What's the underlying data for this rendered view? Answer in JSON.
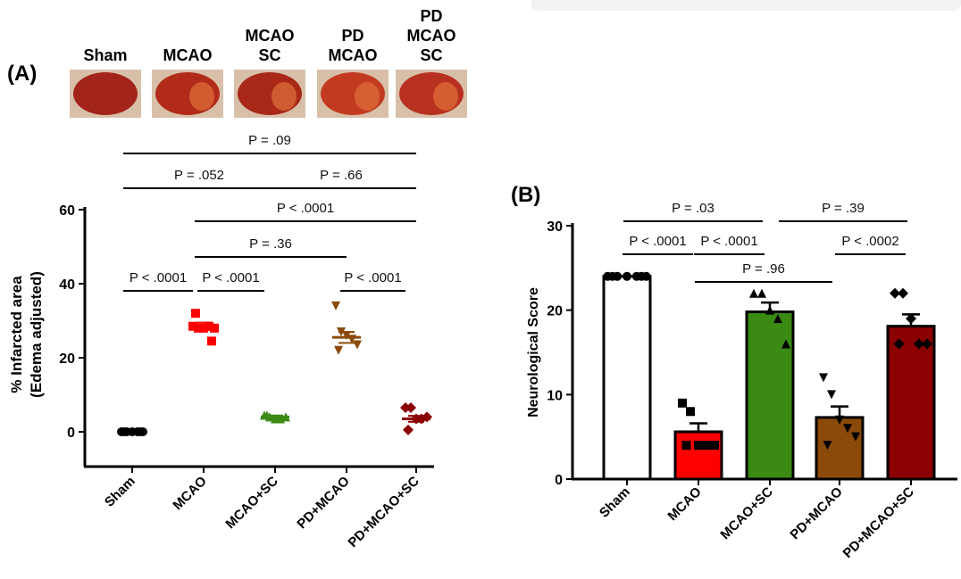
{
  "top_bar_color": "#f2f2f2",
  "chart_data": [
    {
      "panel": "(A)",
      "type": "scatter",
      "ylabel": [
        "% Infarcted area",
        "(Edema adjusted)"
      ],
      "ylim": [
        0,
        60
      ],
      "yticks": [
        "0",
        "20",
        "40",
        "60"
      ],
      "categories": [
        "Sham",
        "MCAO",
        "MCAO+SC",
        "PD+MCAO",
        "PD+MCAO+SC"
      ],
      "image_labels": [
        "Sham",
        "MCAO",
        "MCAO SC",
        "PD MCAO",
        "PD MCAO SC"
      ],
      "series": [
        {
          "name": "Sham",
          "color": "#000000",
          "marker": "circle",
          "mean": 0,
          "sem": 0,
          "points": [
            0,
            0,
            0,
            0,
            0,
            0,
            0
          ]
        },
        {
          "name": "MCAO",
          "color": "#ff0000",
          "marker": "square",
          "mean": 28.5,
          "sem": 1,
          "points": [
            28.5,
            28,
            28,
            28.5,
            28,
            32,
            24.5
          ]
        },
        {
          "name": "MCAO+SC",
          "color": "#3a8a14",
          "marker": "triangle-up",
          "mean": 4,
          "sem": 0.4,
          "points": [
            4.5,
            4,
            3.5,
            3.5,
            4,
            4.5
          ]
        },
        {
          "name": "PD+MCAO",
          "color": "#8b4a0a",
          "marker": "triangle-down",
          "mean": 25.5,
          "sem": 1.5,
          "points": [
            34,
            27,
            26,
            25,
            23.5,
            22
          ]
        },
        {
          "name": "PD+MCAO+SC",
          "color": "#8b0000",
          "marker": "diamond",
          "mean": 3.5,
          "sem": 0.8,
          "points": [
            6.5,
            6.5,
            3.5,
            3.5,
            4,
            0.5
          ]
        }
      ],
      "comparisons": [
        {
          "label": "P = .09",
          "from": 0,
          "to": 4,
          "level": 5
        },
        {
          "label": "P = .052",
          "from": 0,
          "to": 2,
          "level": 4
        },
        {
          "label": "P = .66",
          "from": 2,
          "to": 4,
          "level": 4
        },
        {
          "label": "P < .0001",
          "from": 1,
          "to": 4,
          "level": 3
        },
        {
          "label": "P = .36",
          "from": 1,
          "to": 3,
          "level": 2
        },
        {
          "label": "P < .0001",
          "from": 0,
          "to": 1,
          "level": 1
        },
        {
          "label": "P < .0001",
          "from": 1,
          "to": 2,
          "level": 1
        },
        {
          "label": "P < .0001",
          "from": 3,
          "to": 4,
          "level": 1
        }
      ]
    },
    {
      "panel": "(B)",
      "type": "bar",
      "ylabel": "Neurological Score",
      "ylim": [
        0,
        30
      ],
      "yticks": [
        "0",
        "10",
        "20",
        "30"
      ],
      "categories": [
        "Sham",
        "MCAO",
        "MCAO+SC",
        "PD+MCAO",
        "PD+MCAO+SC"
      ],
      "series": [
        {
          "name": "Sham",
          "color": "#ffffff",
          "marker": "circle",
          "value": 24,
          "sem": 0,
          "points": [
            24,
            24,
            24,
            24,
            24,
            24,
            24
          ]
        },
        {
          "name": "MCAO",
          "color": "#ff0000",
          "marker": "square",
          "value": 5.6,
          "sem": 1,
          "points": [
            9,
            8,
            4,
            4,
            4,
            4
          ]
        },
        {
          "name": "MCAO+SC",
          "color": "#3a8a14",
          "marker": "triangle-up",
          "value": 19.8,
          "sem": 1.1,
          "points": [
            22,
            22,
            20,
            19,
            16
          ]
        },
        {
          "name": "PD+MCAO",
          "color": "#8b4a0a",
          "marker": "triangle-down",
          "value": 7.3,
          "sem": 1.3,
          "points": [
            12,
            10,
            7,
            6,
            5,
            4
          ]
        },
        {
          "name": "PD+MCAO+SC",
          "color": "#8b0000",
          "marker": "diamond",
          "value": 18.1,
          "sem": 1.4,
          "points": [
            22,
            22,
            19,
            16,
            16,
            16
          ]
        }
      ],
      "comparisons": [
        {
          "label": "P = .03",
          "from": 0,
          "to": 2,
          "level": 3
        },
        {
          "label": "P = .39",
          "from": 2,
          "to": 4,
          "level": 3
        },
        {
          "label": "P < .0001",
          "from": 0,
          "to": 1,
          "level": 2
        },
        {
          "label": "P < .0001",
          "from": 1,
          "to": 2,
          "level": 2
        },
        {
          "label": "P < .0002",
          "from": 3,
          "to": 4,
          "level": 2
        },
        {
          "label": "P = .96",
          "from": 1,
          "to": 3,
          "level": 1
        }
      ]
    }
  ]
}
